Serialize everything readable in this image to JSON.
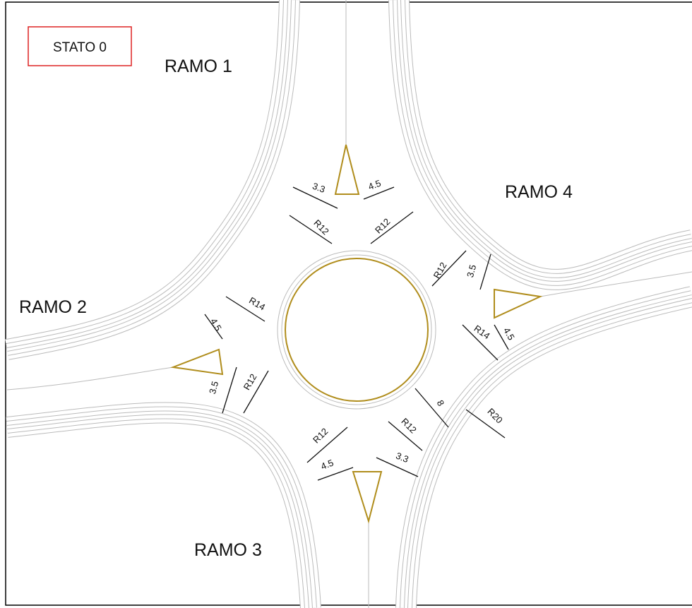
{
  "label_box": "STATO 0",
  "arms": [
    "RAMO 1",
    "RAMO 2",
    "RAMO 3",
    "RAMO 4"
  ],
  "dimensions": [
    "3.3",
    "4.5",
    "R12",
    "R12",
    "R12",
    "3.5",
    "R14",
    "4.5",
    "R14",
    "4.5",
    "3.5",
    "R12",
    "8",
    "R20",
    "R12",
    "R12",
    "4.5",
    "3.3"
  ]
}
